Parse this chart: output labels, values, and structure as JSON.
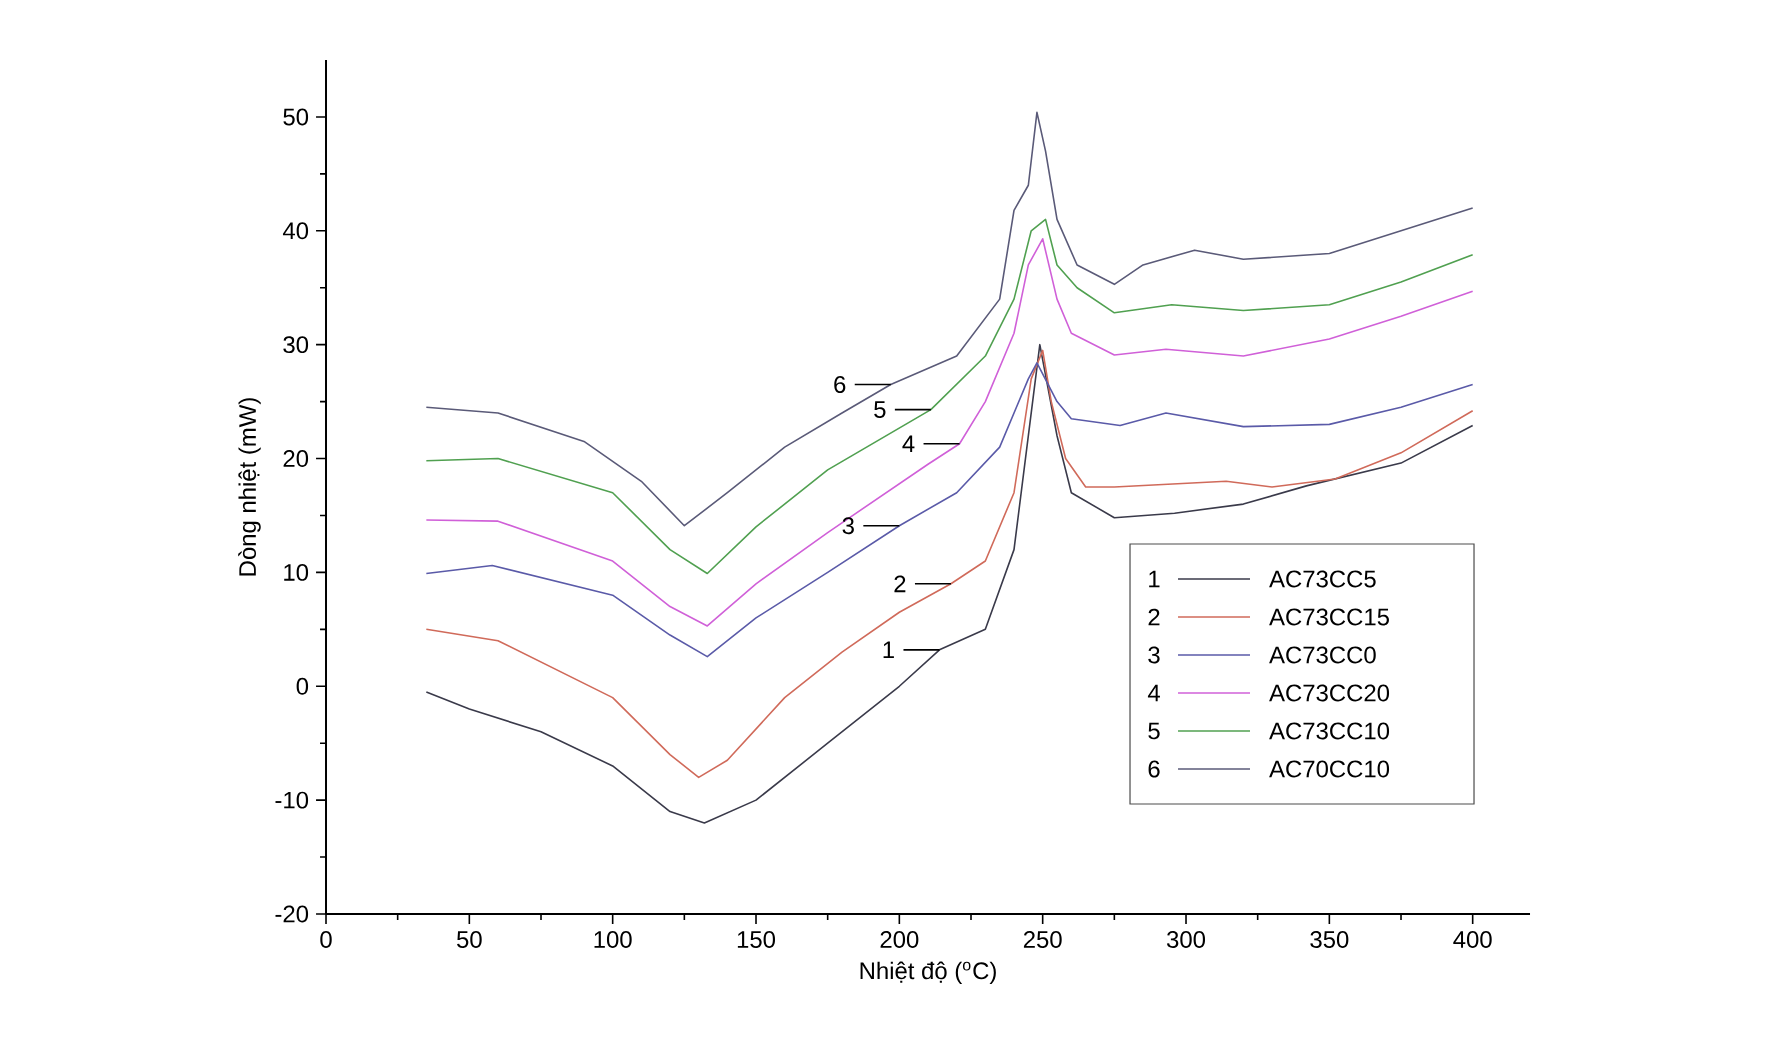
{
  "chart_data": {
    "type": "line",
    "xlabel": "Nhiệt độ ($^{o}$C)",
    "ylabel": "Dòng nhiệt (mW)",
    "xlim": [
      0,
      420
    ],
    "ylim": [
      -20,
      55
    ],
    "xticks": [
      0,
      50,
      100,
      150,
      200,
      250,
      300,
      350,
      400
    ],
    "yticks": [
      -20,
      -10,
      0,
      10,
      20,
      30,
      40,
      50
    ],
    "legend": "bottom right",
    "series": [
      {
        "name": "AC73CC5",
        "color": "#3a3a4a",
        "x": [
          35,
          50,
          75,
          100,
          120,
          132,
          150,
          175,
          200,
          214,
          230,
          240,
          245,
          249,
          255,
          260,
          275,
          296,
          320,
          342,
          375,
          400
        ],
        "values": [
          -0.5,
          -2,
          -4,
          -7,
          -11,
          -12,
          -10,
          -5,
          0,
          3.2,
          5,
          12,
          22,
          30,
          22,
          17,
          14.8,
          15.2,
          16,
          17.6,
          19.6,
          22.9
        ]
      },
      {
        "name": "AC73CC15",
        "color": "#d06a5a",
        "x": [
          35,
          60,
          100,
          120,
          130,
          140,
          160,
          180,
          200,
          218,
          230,
          240,
          246,
          250,
          253,
          258,
          265,
          275,
          314,
          330,
          352,
          375,
          400
        ],
        "values": [
          5,
          4,
          -1,
          -6,
          -8,
          -6.5,
          -1,
          3,
          6.5,
          9,
          11,
          17,
          27,
          29.5,
          25,
          20,
          17.5,
          17.5,
          18,
          17.5,
          18.2,
          20.5,
          24.2
        ]
      },
      {
        "name": "AC73CC0",
        "color": "#5a5aa8",
        "x": [
          35,
          58,
          100,
          120,
          133,
          150,
          175,
          200,
          220,
          235,
          245,
          248,
          255,
          260,
          277,
          293,
          320,
          350,
          375,
          400
        ],
        "values": [
          9.9,
          10.6,
          8,
          4.5,
          2.6,
          6,
          10,
          14.1,
          17,
          21,
          27,
          28.4,
          25,
          23.5,
          22.9,
          24,
          22.8,
          23,
          24.5,
          26.5
        ]
      },
      {
        "name": "AC73CC20",
        "color": "#d060d8",
        "x": [
          35,
          60,
          100,
          120,
          133,
          150,
          175,
          210,
          221,
          230,
          240,
          245,
          250,
          255,
          260,
          275,
          293,
          320,
          350,
          375,
          400
        ],
        "values": [
          14.6,
          14.5,
          11,
          7,
          5.3,
          9,
          13.5,
          19.5,
          21.3,
          25,
          31,
          37,
          39.3,
          34,
          31,
          29.1,
          29.6,
          29,
          30.5,
          32.5,
          34.7
        ]
      },
      {
        "name": "AC73CC10",
        "color": "#50a050",
        "x": [
          35,
          60,
          100,
          120,
          133,
          150,
          175,
          211,
          230,
          240,
          246,
          251,
          255,
          262,
          275,
          295,
          320,
          350,
          375,
          400
        ],
        "values": [
          19.8,
          20,
          17,
          12,
          9.9,
          14,
          19,
          24.3,
          29,
          34,
          40,
          41,
          37,
          35,
          32.8,
          33.5,
          33,
          33.5,
          35.5,
          37.9
        ]
      },
      {
        "name": "AC70CC10",
        "color": "#5a5a78",
        "x": [
          35,
          60,
          90,
          110,
          125,
          140,
          160,
          180,
          197,
          220,
          235,
          240,
          245,
          248,
          251,
          255,
          262,
          275,
          285,
          303,
          320,
          350,
          375,
          400
        ],
        "values": [
          24.5,
          24,
          21.5,
          18,
          14.1,
          17,
          21,
          24,
          26.5,
          29,
          34,
          41.8,
          44,
          50.4,
          47,
          41,
          37,
          35.3,
          37,
          38.3,
          37.5,
          38,
          40,
          42
        ]
      }
    ],
    "annotations": [
      {
        "text": "1",
        "x": 214,
        "y": 3.2
      },
      {
        "text": "2",
        "x": 218,
        "y": 9
      },
      {
        "text": "3",
        "x": 200,
        "y": 14.1
      },
      {
        "text": "4",
        "x": 221,
        "y": 21.3
      },
      {
        "text": "5",
        "x": 211,
        "y": 24.3
      },
      {
        "text": "6",
        "x": 197,
        "y": 26.5
      }
    ]
  }
}
